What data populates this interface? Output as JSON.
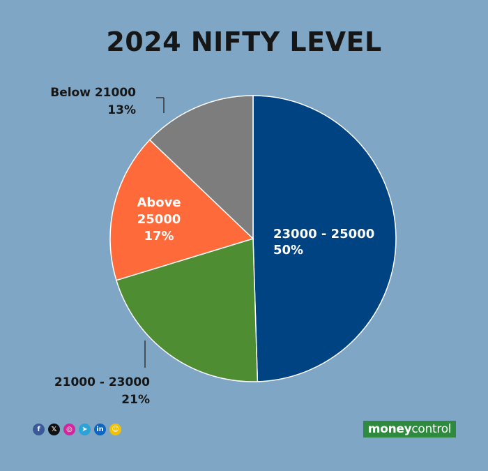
{
  "chart_data": {
    "type": "pie",
    "title": "2024 NIFTY LEVEL",
    "slices": [
      {
        "label": "23000 - 25000",
        "value_label": "50%",
        "value": 50,
        "color": "#004383"
      },
      {
        "label": "21000 - 23000",
        "value_label": "21%",
        "value": 21,
        "color": "#4e8d32"
      },
      {
        "label": "Above 25000",
        "value_label": "17%",
        "value": 17,
        "color": "#ff6a3a"
      },
      {
        "label": "Below 21000",
        "value_label": "13%",
        "value": 13,
        "color": "#7d7d7d"
      }
    ]
  },
  "labels": {
    "slice0": {
      "line1": "23000 - 25000",
      "line2": "50%"
    },
    "slice1": {
      "line1": "21000 - 23000",
      "line2": "21%"
    },
    "slice2": {
      "line1": "Above",
      "line2": "25000",
      "line3": "17%"
    },
    "slice3": {
      "line1": "Below 21000",
      "line2": "13%"
    }
  },
  "footer": {
    "social_icons": [
      {
        "name": "facebook-icon",
        "glyph": "f",
        "color": "#3b5998"
      },
      {
        "name": "x-icon",
        "glyph": "𝕏",
        "color": "#111111"
      },
      {
        "name": "instagram-icon",
        "glyph": "◎",
        "color": "#d6249f"
      },
      {
        "name": "telegram-icon",
        "glyph": "➤",
        "color": "#2aa3d9"
      },
      {
        "name": "linkedin-icon",
        "glyph": "in",
        "color": "#0a66c2"
      },
      {
        "name": "snapchat-icon",
        "glyph": "☺",
        "color": "#f2c200"
      }
    ],
    "brand_part1": "money",
    "brand_part2": "control"
  }
}
